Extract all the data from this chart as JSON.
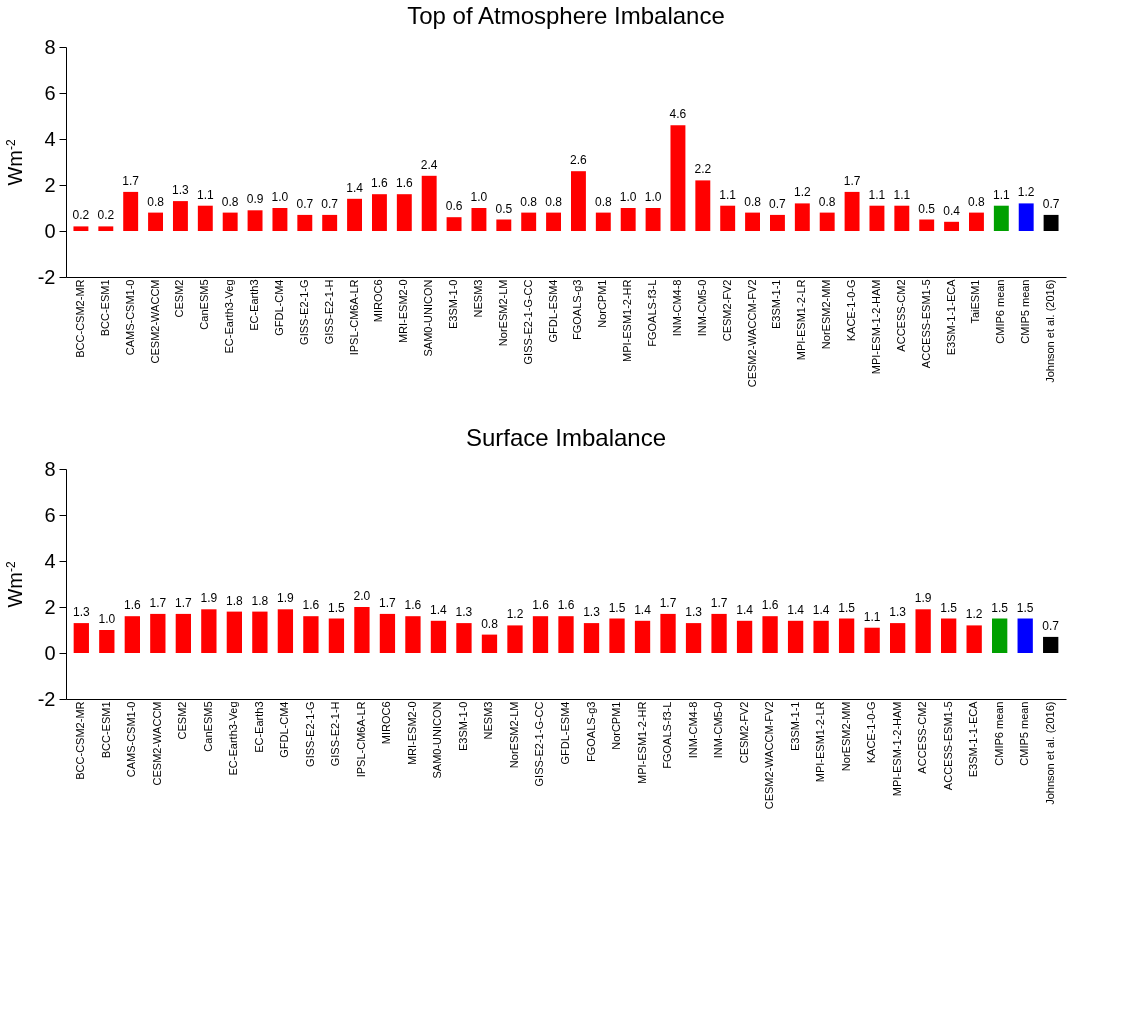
{
  "chart_data": [
    {
      "type": "bar",
      "title": "Top of Atmosphere Imbalance",
      "ylabel": "Wm$^{-2}$",
      "categories": [
        "BCC-CSM2-MR",
        "BCC-ESM1",
        "CAMS-CSM1-0",
        "CESM2-WACCM",
        "CESM2",
        "CanESM5",
        "EC-Earth3-Veg",
        "EC-Earth3",
        "GFDL-CM4",
        "GISS-E2-1-G",
        "GISS-E2-1-H",
        "IPSL-CM6A-LR",
        "MIROC6",
        "MRI-ESM2-0",
        "SAM0-UNICON",
        "E3SM-1-0",
        "NESM3",
        "NorESM2-LM",
        "GISS-E2-1-G-CC",
        "GFDL-ESM4",
        "FGOALS-g3",
        "NorCPM1",
        "MPI-ESM1-2-HR",
        "FGOALS-f3-L",
        "INM-CM4-8",
        "INM-CM5-0",
        "CESM2-FV2",
        "CESM2-WACCM-FV2",
        "E3SM-1-1",
        "MPI-ESM1-2-LR",
        "NorESM2-MM",
        "KACE-1-0-G",
        "MPI-ESM-1-2-HAM",
        "ACCESS-CM2",
        "ACCESS-ESM1-5",
        "E3SM-1-1-ECA",
        "TaiESM1",
        "CMIP6 mean",
        "CMIP5 mean",
        "Johnson et al. (2016)"
      ],
      "values": [
        0.2,
        0.2,
        1.7,
        0.8,
        1.3,
        1.1,
        0.8,
        0.9,
        1.0,
        0.7,
        0.7,
        1.4,
        1.6,
        1.6,
        2.4,
        0.6,
        1.0,
        0.5,
        0.8,
        0.8,
        2.6,
        0.8,
        1.0,
        1.0,
        4.6,
        2.2,
        1.1,
        0.8,
        0.7,
        1.2,
        0.8,
        1.7,
        1.1,
        1.1,
        0.5,
        0.4,
        0.8,
        1.1,
        1.2,
        0.7
      ],
      "value_labels": [
        "0.2",
        "0.2",
        "1.7",
        "0.8",
        "1.3",
        "1.1",
        "0.8",
        "0.9",
        "1.0",
        "0.7",
        "0.7",
        "1.4",
        "1.6",
        "1.6",
        "2.4",
        "0.6",
        "1.0",
        "0.5",
        "0.8",
        "0.8",
        "2.6",
        "0.8",
        "1.0",
        "1.0",
        "4.6",
        "2.2",
        "1.1",
        "0.8",
        "0.7",
        "1.2",
        "0.8",
        "1.7",
        "1.1",
        "1.1",
        "0.5",
        "0.4",
        "0.8",
        "1.1",
        "1.2",
        "0.7"
      ],
      "colors": [
        "#ff0000",
        "#ff0000",
        "#ff0000",
        "#ff0000",
        "#ff0000",
        "#ff0000",
        "#ff0000",
        "#ff0000",
        "#ff0000",
        "#ff0000",
        "#ff0000",
        "#ff0000",
        "#ff0000",
        "#ff0000",
        "#ff0000",
        "#ff0000",
        "#ff0000",
        "#ff0000",
        "#ff0000",
        "#ff0000",
        "#ff0000",
        "#ff0000",
        "#ff0000",
        "#ff0000",
        "#ff0000",
        "#ff0000",
        "#ff0000",
        "#ff0000",
        "#ff0000",
        "#ff0000",
        "#ff0000",
        "#ff0000",
        "#ff0000",
        "#ff0000",
        "#ff0000",
        "#ff0000",
        "#ff0000",
        "#00a000",
        "#0000ff",
        "#000000"
      ],
      "ylim": [
        -2,
        8
      ],
      "yticks": [
        -2,
        0,
        2,
        4,
        6,
        8
      ]
    },
    {
      "type": "bar",
      "title": "Surface Imbalance",
      "ylabel": "Wm$^{-2}$",
      "categories": [
        "BCC-CSM2-MR",
        "BCC-ESM1",
        "CAMS-CSM1-0",
        "CESM2-WACCM",
        "CESM2",
        "CanESM5",
        "EC-Earth3-Veg",
        "EC-Earth3",
        "GFDL-CM4",
        "GISS-E2-1-G",
        "GISS-E2-1-H",
        "IPSL-CM6A-LR",
        "MIROC6",
        "MRI-ESM2-0",
        "SAM0-UNICON",
        "E3SM-1-0",
        "NESM3",
        "NorESM2-LM",
        "GISS-E2-1-G-CC",
        "GFDL-ESM4",
        "FGOALS-g3",
        "NorCPM1",
        "MPI-ESM1-2-HR",
        "FGOALS-f3-L",
        "INM-CM4-8",
        "INM-CM5-0",
        "CESM2-FV2",
        "CESM2-WACCM-FV2",
        "E3SM-1-1",
        "MPI-ESM1-2-LR",
        "NorESM2-MM",
        "KACE-1-0-G",
        "MPI-ESM-1-2-HAM",
        "ACCESS-CM2",
        "ACCESS-ESM1-5",
        "E3SM-1-1-ECA",
        "CMIP6 mean",
        "CMIP5 mean",
        "Johnson et al. (2016)"
      ],
      "values": [
        1.3,
        1.0,
        1.6,
        1.7,
        1.7,
        1.9,
        1.8,
        1.8,
        1.9,
        1.6,
        1.5,
        2.0,
        1.7,
        1.6,
        1.4,
        1.3,
        0.8,
        1.2,
        1.6,
        1.6,
        1.3,
        1.5,
        1.4,
        1.7,
        1.3,
        1.7,
        1.4,
        1.6,
        1.4,
        1.4,
        1.5,
        1.1,
        1.3,
        1.9,
        1.5,
        1.2,
        1.5,
        1.5,
        0.7
      ],
      "value_labels": [
        "1.3",
        "1.0",
        "1.6",
        "1.7",
        "1.7",
        "1.9",
        "1.8",
        "1.8",
        "1.9",
        "1.6",
        "1.5",
        "2.0",
        "1.7",
        "1.6",
        "1.4",
        "1.3",
        "0.8",
        "1.2",
        "1.6",
        "1.6",
        "1.3",
        "1.5",
        "1.4",
        "1.7",
        "1.3",
        "1.7",
        "1.4",
        "1.6",
        "1.4",
        "1.4",
        "1.5",
        "1.1",
        "1.3",
        "1.9",
        "1.5",
        "1.2",
        "1.5",
        "1.5",
        "0.7"
      ],
      "colors": [
        "#ff0000",
        "#ff0000",
        "#ff0000",
        "#ff0000",
        "#ff0000",
        "#ff0000",
        "#ff0000",
        "#ff0000",
        "#ff0000",
        "#ff0000",
        "#ff0000",
        "#ff0000",
        "#ff0000",
        "#ff0000",
        "#ff0000",
        "#ff0000",
        "#ff0000",
        "#ff0000",
        "#ff0000",
        "#ff0000",
        "#ff0000",
        "#ff0000",
        "#ff0000",
        "#ff0000",
        "#ff0000",
        "#ff0000",
        "#ff0000",
        "#ff0000",
        "#ff0000",
        "#ff0000",
        "#ff0000",
        "#ff0000",
        "#ff0000",
        "#ff0000",
        "#ff0000",
        "#ff0000",
        "#00a000",
        "#0000ff",
        "#000000"
      ],
      "ylim": [
        -2,
        8
      ],
      "yticks": [
        -2,
        0,
        2,
        4,
        6,
        8
      ]
    }
  ]
}
